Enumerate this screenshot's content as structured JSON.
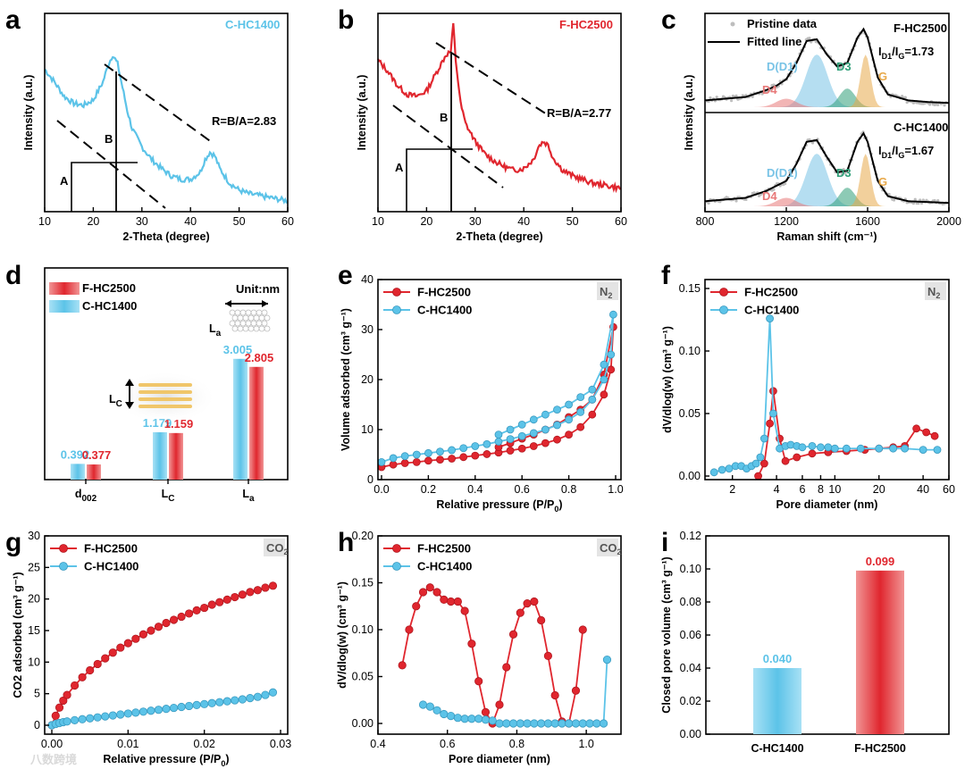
{
  "colors": {
    "red": "#e0262e",
    "blue": "#5cc3e8",
    "gray": "#bdbdbd",
    "d4": "#e87878",
    "d1": "#78c3e6",
    "d3": "#2f9f78",
    "g": "#e8a94a"
  },
  "watermark": "八数跨境",
  "chart_data": [
    {
      "panel": "a",
      "type": "line",
      "title": "C-HC1400",
      "xlabel": "2-Theta (degree)",
      "ylabel": "Intensity (a.u.)",
      "xlim": [
        10,
        60
      ],
      "xticks": [
        10,
        20,
        30,
        40,
        50,
        60
      ],
      "annotation": "R=B/A=2.83",
      "label_A": "A",
      "label_B": "B",
      "series": [
        {
          "name": "C-HC1400",
          "x": [
            10,
            12,
            14,
            16,
            18,
            20,
            22,
            23,
            24,
            25,
            26,
            27,
            28,
            30,
            32,
            34,
            36,
            38,
            40,
            42,
            43,
            44,
            45,
            46,
            48,
            50,
            52,
            54,
            56,
            58,
            60
          ],
          "y": [
            0.75,
            0.68,
            0.6,
            0.56,
            0.55,
            0.58,
            0.68,
            0.77,
            0.83,
            0.78,
            0.65,
            0.52,
            0.42,
            0.32,
            0.25,
            0.2,
            0.16,
            0.14,
            0.14,
            0.18,
            0.25,
            0.29,
            0.27,
            0.2,
            0.12,
            0.08,
            0.06,
            0.05,
            0.04,
            0.03,
            0.02
          ]
        }
      ]
    },
    {
      "panel": "b",
      "type": "line",
      "title": "F-HC2500",
      "xlabel": "2-Theta (degree)",
      "ylabel": "Intensity (a.u.)",
      "xlim": [
        10,
        60
      ],
      "xticks": [
        10,
        20,
        30,
        40,
        50,
        60
      ],
      "annotation": "R=B/A=2.77",
      "label_A": "A",
      "label_B": "B",
      "series": [
        {
          "name": "F-HC2500",
          "x": [
            10,
            12,
            14,
            16,
            18,
            20,
            22,
            24,
            25,
            25.5,
            26,
            27,
            28,
            30,
            32,
            34,
            36,
            38,
            40,
            42,
            43,
            44,
            45,
            46,
            48,
            50,
            52,
            54,
            56,
            58,
            60
          ],
          "y": [
            0.8,
            0.74,
            0.66,
            0.61,
            0.6,
            0.63,
            0.73,
            0.83,
            0.85,
            1.0,
            0.8,
            0.56,
            0.45,
            0.35,
            0.28,
            0.24,
            0.21,
            0.19,
            0.2,
            0.25,
            0.32,
            0.35,
            0.33,
            0.26,
            0.19,
            0.16,
            0.14,
            0.12,
            0.11,
            0.1,
            0.09
          ]
        }
      ]
    },
    {
      "panel": "c",
      "type": "line",
      "xlabel": "Raman shift (cm⁻¹)",
      "ylabel": "Intensity (a.u.)",
      "xlim": [
        800,
        2000
      ],
      "xticks": [
        800,
        1200,
        1600,
        2000
      ],
      "legend": [
        "Pristine data",
        "Fitted line"
      ],
      "subplots": [
        {
          "name": "F-HC2500",
          "ratio": "I",
          "ratio_sub": "D1",
          "ratio_sub2": "G",
          "ratio_val": "=1.73",
          "bands": [
            "D(D1)",
            "D3",
            "G",
            "D4"
          ],
          "x": [
            800,
            900,
            1000,
            1100,
            1150,
            1200,
            1250,
            1300,
            1350,
            1400,
            1450,
            1500,
            1550,
            1580,
            1600,
            1650,
            1700,
            1800,
            1900,
            2000
          ],
          "y": [
            0.08,
            0.1,
            0.12,
            0.2,
            0.25,
            0.33,
            0.52,
            0.78,
            0.8,
            0.62,
            0.48,
            0.52,
            0.82,
            0.92,
            0.82,
            0.35,
            0.15,
            0.08,
            0.06,
            0.05
          ]
        },
        {
          "name": "C-HC1400",
          "ratio": "I",
          "ratio_sub": "D1",
          "ratio_sub2": "G",
          "ratio_val": "=1.67",
          "bands": [
            "D(D1)",
            "D3",
            "G",
            "D4"
          ],
          "x": [
            800,
            900,
            1000,
            1100,
            1150,
            1200,
            1250,
            1300,
            1350,
            1400,
            1450,
            1500,
            1550,
            1580,
            1600,
            1650,
            1700,
            1800,
            1900,
            2000
          ],
          "y": [
            0.06,
            0.08,
            0.1,
            0.18,
            0.24,
            0.3,
            0.5,
            0.76,
            0.78,
            0.58,
            0.4,
            0.42,
            0.76,
            0.86,
            0.76,
            0.3,
            0.12,
            0.06,
            0.05,
            0.04
          ]
        }
      ]
    },
    {
      "panel": "d",
      "type": "bar",
      "unit": "Unit:nm",
      "categories": [
        "d002",
        "LC",
        "La"
      ],
      "series": [
        {
          "name": "F-HC2500",
          "values": [
            0.377,
            1.159,
            2.805
          ]
        },
        {
          "name": "C-HC1400",
          "values": [
            0.392,
            1.179,
            3.005
          ]
        }
      ],
      "inset_labels": [
        "La",
        "LC"
      ]
    },
    {
      "panel": "e",
      "type": "line",
      "tag": "N2",
      "xlabel": "Relative pressure (P/P0)",
      "ylabel": "Volume adsorbed (cm³ g⁻¹)",
      "xlim": [
        0,
        1.0
      ],
      "ylim": [
        0,
        40
      ],
      "xticks": [
        0.0,
        0.2,
        0.4,
        0.6,
        0.8,
        1.0
      ],
      "yticks": [
        0,
        10,
        20,
        30,
        40
      ],
      "series": [
        {
          "name": "F-HC2500",
          "x": [
            0.0,
            0.05,
            0.1,
            0.15,
            0.2,
            0.25,
            0.3,
            0.35,
            0.4,
            0.45,
            0.5,
            0.55,
            0.6,
            0.65,
            0.7,
            0.75,
            0.8,
            0.85,
            0.9,
            0.95,
            0.98,
            0.99,
            0.95,
            0.9,
            0.85,
            0.8,
            0.75,
            0.7,
            0.65,
            0.6,
            0.55,
            0.5
          ],
          "y": [
            2.5,
            3.0,
            3.3,
            3.5,
            3.8,
            4.0,
            4.2,
            4.5,
            4.8,
            5.1,
            5.4,
            5.8,
            6.2,
            6.7,
            7.3,
            8.0,
            9.0,
            10.5,
            13,
            17,
            22,
            30.5,
            21,
            16,
            14,
            12.5,
            11,
            10,
            9,
            8.2,
            7.3,
            6.5
          ]
        },
        {
          "name": "C-HC1400",
          "x": [
            0.0,
            0.05,
            0.1,
            0.15,
            0.2,
            0.25,
            0.3,
            0.35,
            0.4,
            0.45,
            0.5,
            0.55,
            0.6,
            0.65,
            0.7,
            0.75,
            0.8,
            0.85,
            0.9,
            0.95,
            0.98,
            0.99,
            0.95,
            0.9,
            0.85,
            0.8,
            0.75,
            0.7,
            0.65,
            0.6,
            0.55,
            0.5
          ],
          "y": [
            3.5,
            4.3,
            4.7,
            5.0,
            5.3,
            5.6,
            5.9,
            6.3,
            6.7,
            7.1,
            7.6,
            8.1,
            8.7,
            9.3,
            10,
            10.9,
            12,
            13.5,
            16,
            20,
            25,
            33,
            23,
            18,
            16.5,
            15,
            14,
            13,
            12,
            11,
            10,
            9
          ]
        }
      ]
    },
    {
      "panel": "f",
      "type": "line",
      "tag": "N2",
      "xlabel": "Pore diameter (nm)",
      "ylabel": "dV/dlog(w) (cm³ g⁻¹)",
      "xscale": "log",
      "xticks": [
        2,
        4,
        6,
        8,
        10,
        20,
        40,
        60
      ],
      "ylim": [
        0,
        0.16
      ],
      "yticks": [
        0.0,
        0.05,
        0.1,
        0.15
      ],
      "series": [
        {
          "name": "F-HC2500",
          "x": [
            3.0,
            3.3,
            3.6,
            3.8,
            4.2,
            4.6,
            5.5,
            7,
            9,
            12,
            16,
            20,
            25,
            30,
            36,
            42,
            48
          ],
          "y": [
            0.0,
            0.01,
            0.042,
            0.068,
            0.03,
            0.012,
            0.015,
            0.018,
            0.019,
            0.02,
            0.021,
            0.022,
            0.023,
            0.024,
            0.038,
            0.035,
            0.032
          ]
        },
        {
          "name": "C-HC1400",
          "x": [
            1.5,
            1.7,
            1.9,
            2.1,
            2.3,
            2.5,
            2.7,
            2.9,
            3.1,
            3.3,
            3.6,
            3.8,
            4.2,
            4.6,
            5,
            5.5,
            6,
            7,
            8,
            9,
            10,
            12,
            15,
            20,
            25,
            30,
            40,
            50
          ],
          "y": [
            0.003,
            0.005,
            0.006,
            0.008,
            0.008,
            0.006,
            0.008,
            0.01,
            0.015,
            0.03,
            0.126,
            0.05,
            0.022,
            0.024,
            0.025,
            0.024,
            0.023,
            0.024,
            0.023,
            0.023,
            0.022,
            0.022,
            0.022,
            0.022,
            0.022,
            0.022,
            0.021,
            0.021
          ]
        }
      ]
    },
    {
      "panel": "g",
      "type": "line",
      "tag": "CO2",
      "xlabel": "Relative pressure (P/P0)",
      "ylabel": "CO2 adsorbed (cm³ g⁻¹)",
      "xlim": [
        0,
        0.03
      ],
      "ylim": [
        0,
        30
      ],
      "xticks": [
        0.0,
        0.01,
        0.02,
        0.03
      ],
      "yticks": [
        0,
        5,
        10,
        15,
        20,
        25,
        30
      ],
      "series": [
        {
          "name": "F-HC2500",
          "x": [
            0.0,
            0.0005,
            0.001,
            0.0015,
            0.002,
            0.003,
            0.004,
            0.005,
            0.006,
            0.007,
            0.008,
            0.009,
            0.01,
            0.011,
            0.012,
            0.013,
            0.014,
            0.015,
            0.016,
            0.017,
            0.018,
            0.019,
            0.02,
            0.021,
            0.022,
            0.023,
            0.024,
            0.025,
            0.026,
            0.027,
            0.028,
            0.029
          ],
          "y": [
            0,
            1.5,
            2.8,
            3.9,
            4.8,
            6.3,
            7.6,
            8.7,
            9.7,
            10.6,
            11.5,
            12.3,
            13.0,
            13.7,
            14.4,
            15.0,
            15.6,
            16.2,
            16.7,
            17.2,
            17.7,
            18.2,
            18.6,
            19.1,
            19.5,
            19.9,
            20.3,
            20.7,
            21.1,
            21.4,
            21.8,
            22.1
          ]
        },
        {
          "name": "C-HC1400",
          "x": [
            0.0,
            0.0005,
            0.001,
            0.0015,
            0.002,
            0.003,
            0.004,
            0.005,
            0.006,
            0.007,
            0.008,
            0.009,
            0.01,
            0.011,
            0.012,
            0.013,
            0.014,
            0.015,
            0.016,
            0.017,
            0.018,
            0.019,
            0.02,
            0.021,
            0.022,
            0.023,
            0.024,
            0.025,
            0.026,
            0.027,
            0.028,
            0.029
          ],
          "y": [
            0,
            0.2,
            0.35,
            0.5,
            0.6,
            0.8,
            0.95,
            1.1,
            1.25,
            1.4,
            1.55,
            1.7,
            1.85,
            2.0,
            2.15,
            2.3,
            2.45,
            2.6,
            2.75,
            2.9,
            3.05,
            3.2,
            3.35,
            3.5,
            3.65,
            3.8,
            3.95,
            4.1,
            4.3,
            4.5,
            4.8,
            5.2
          ]
        }
      ]
    },
    {
      "panel": "h",
      "type": "line",
      "tag": "CO2",
      "xlabel": "Pore diameter (nm)",
      "ylabel": "dV/dlog(w) (cm³ g⁻¹)",
      "xlim": [
        0.4,
        1.1
      ],
      "ylim": [
        -0.01,
        0.2
      ],
      "xticks": [
        0.4,
        0.6,
        0.8,
        1.0
      ],
      "yticks": [
        0.0,
        0.05,
        0.1,
        0.15,
        0.2
      ],
      "series": [
        {
          "name": "F-HC2500",
          "x": [
            0.47,
            0.49,
            0.51,
            0.53,
            0.55,
            0.57,
            0.59,
            0.61,
            0.63,
            0.65,
            0.67,
            0.69,
            0.71,
            0.73,
            0.75,
            0.77,
            0.79,
            0.81,
            0.83,
            0.85,
            0.87,
            0.89,
            0.91,
            0.93,
            0.95,
            0.97,
            0.99
          ],
          "y": [
            0.062,
            0.1,
            0.125,
            0.14,
            0.145,
            0.14,
            0.132,
            0.13,
            0.13,
            0.12,
            0.085,
            0.045,
            0.012,
            0.0,
            0.02,
            0.06,
            0.095,
            0.118,
            0.128,
            0.13,
            0.11,
            0.072,
            0.03,
            0.002,
            0.0,
            0.035,
            0.1
          ]
        },
        {
          "name": "C-HC1400",
          "x": [
            0.53,
            0.55,
            0.57,
            0.59,
            0.61,
            0.63,
            0.65,
            0.67,
            0.69,
            0.71,
            0.73,
            0.75,
            0.77,
            0.79,
            0.81,
            0.83,
            0.85,
            0.87,
            0.89,
            0.91,
            0.93,
            0.95,
            0.97,
            0.99,
            1.01,
            1.03,
            1.05,
            1.06
          ],
          "y": [
            0.02,
            0.018,
            0.014,
            0.01,
            0.008,
            0.006,
            0.005,
            0.005,
            0.005,
            0.004,
            0.003,
            0.0,
            0.0,
            0.0,
            0.0,
            0.0,
            0.0,
            0.0,
            0.0,
            0.0,
            0.0,
            0.0,
            0.0,
            0.0,
            0.0,
            0.0,
            0.0,
            0.068
          ]
        }
      ]
    },
    {
      "panel": "i",
      "type": "bar",
      "ylabel": "Closed pore volume (cm³ g⁻¹)",
      "categories": [
        "C-HC1400",
        "F-HC2500"
      ],
      "values": [
        0.04,
        0.099
      ],
      "value_labels": [
        "0.040",
        "0.099"
      ],
      "ylim": [
        0,
        0.12
      ],
      "yticks": [
        0.0,
        0.02,
        0.04,
        0.06,
        0.08,
        0.1,
        0.12
      ]
    }
  ]
}
